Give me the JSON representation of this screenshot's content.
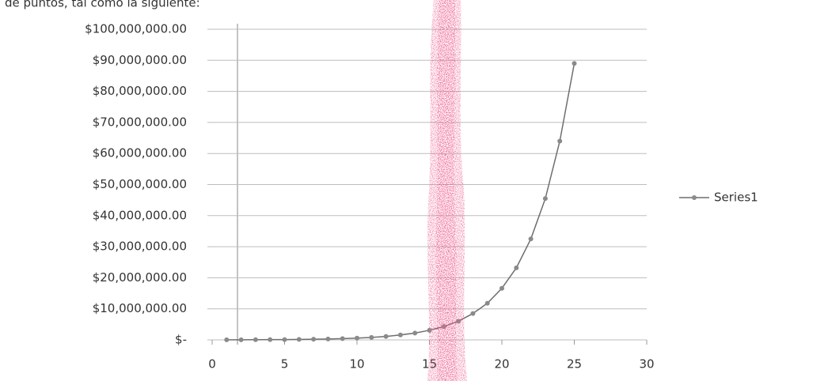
{
  "caption": "de puntos, tal como la siguiente:",
  "chart_data": {
    "type": "line",
    "x": [
      1,
      2,
      3,
      4,
      5,
      6,
      7,
      8,
      9,
      10,
      11,
      12,
      13,
      14,
      15,
      16,
      17,
      18,
      19,
      20,
      21,
      22,
      23,
      24,
      25
    ],
    "series": [
      {
        "name": "Series1",
        "color": "#6e6e6e",
        "values": [
          30000,
          40000,
          60000,
          80000,
          110000,
          150000,
          210000,
          300000,
          410000,
          580000,
          800000,
          1100000,
          1600000,
          2200000,
          3100000,
          4300000,
          6000000,
          8500000,
          11800000,
          16600000,
          23200000,
          32500000,
          45500000,
          64000000,
          89000000
        ]
      }
    ],
    "xlim": [
      0,
      30
    ],
    "xticks": [
      0,
      5,
      10,
      15,
      20,
      25,
      30
    ],
    "ylim": [
      0,
      100000000
    ],
    "yticks": [
      {
        "value": 0,
        "label": "$-"
      },
      {
        "value": 10000000,
        "label": "$10,000,000.00"
      },
      {
        "value": 20000000,
        "label": "$20,000,000.00"
      },
      {
        "value": 30000000,
        "label": "$30,000,000.00"
      },
      {
        "value": 40000000,
        "label": "$40,000,000.00"
      },
      {
        "value": 50000000,
        "label": "$50,000,000.00"
      },
      {
        "value": 60000000,
        "label": "$60,000,000.00"
      },
      {
        "value": 70000000,
        "label": "$70,000,000.00"
      },
      {
        "value": 80000000,
        "label": "$80,000,000.00"
      },
      {
        "value": 90000000,
        "label": "$90,000,000.00"
      },
      {
        "value": 100000000,
        "label": "$100,000,000.00"
      }
    ],
    "grid": true,
    "legend": "right"
  }
}
